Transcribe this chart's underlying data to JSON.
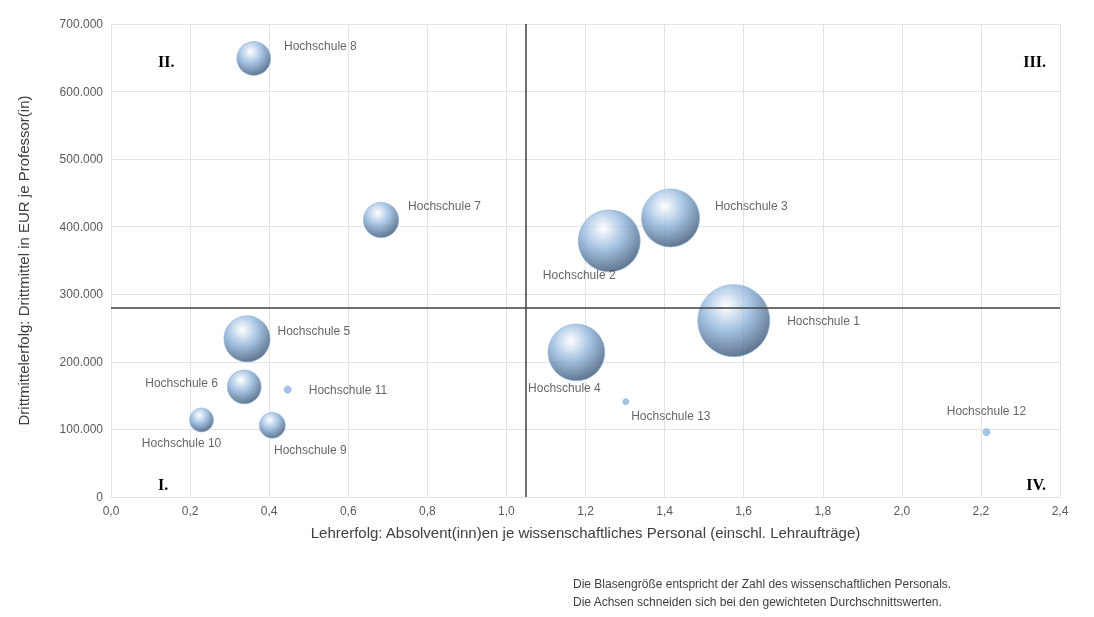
{
  "chart_data": {
    "type": "bubble",
    "xlabel": "Lehrerfolg: Absolvent(inn)en je wissenschaftliches Personal (einschl. Lehraufträge)",
    "ylabel": "Drittmittelerfolg: Drittmittel in EUR je Professor(in)",
    "xlim": [
      0,
      2.4
    ],
    "xticks": [
      {
        "value": 0,
        "label": "0,0"
      },
      {
        "value": 0.2,
        "label": "0,2"
      },
      {
        "value": 0.4,
        "label": "0,4"
      },
      {
        "value": 0.6,
        "label": "0,6"
      },
      {
        "value": 0.8,
        "label": "0,8"
      },
      {
        "value": 1,
        "label": "1,0"
      },
      {
        "value": 1.2,
        "label": "1,2"
      },
      {
        "value": 1.4,
        "label": "1,4"
      },
      {
        "value": 1.6,
        "label": "1,6"
      },
      {
        "value": 1.8,
        "label": "1,8"
      },
      {
        "value": 2,
        "label": "2,0"
      },
      {
        "value": 2.2,
        "label": "2,2"
      },
      {
        "value": 2.4,
        "label": "2,4"
      }
    ],
    "ylim": [
      0,
      700000
    ],
    "yticks": [
      0,
      {
        "value": 100000,
        "label": "100.000"
      },
      {
        "value": 200000,
        "label": "200.000"
      },
      {
        "value": 300000,
        "label": "300.000"
      },
      {
        "value": 400000,
        "label": "400.000"
      },
      {
        "value": 500000,
        "label": "500.000"
      },
      {
        "value": 600000,
        "label": "600.000"
      },
      {
        "value": 700000,
        "label": "700.000"
      }
    ],
    "grid": true,
    "legend": false,
    "marker": "circle",
    "series": [
      {
        "name": "Hochschule 1",
        "color": "#8fb4dc",
        "x": [
          1.575
        ],
        "values": [
          261000
        ],
        "sizes": [
          1
        ]
      },
      {
        "name": "Hochschule 2",
        "color": "#8fb4dc",
        "x": [
          1.26
        ],
        "values": [
          379000
        ],
        "sizes": [
          0.74
        ]
      },
      {
        "name": "Hochschule 3",
        "color": "#8fb4dc",
        "x": [
          1.415
        ],
        "values": [
          413000
        ],
        "sizes": [
          0.65
        ]
      },
      {
        "name": "Hochschule 4",
        "color": "#8fb4dc",
        "x": [
          1.177
        ],
        "values": [
          214000
        ],
        "sizes": [
          0.62
        ]
      },
      {
        "name": "Hochschule 5",
        "color": "#8fb4dc",
        "x": [
          0.344
        ],
        "values": [
          234000
        ],
        "sizes": [
          0.41
        ]
      },
      {
        "name": "Hochschule 6",
        "color": "#8fb4dc",
        "x": [
          0.337
        ],
        "values": [
          163000
        ],
        "sizes": [
          0.22
        ]
      },
      {
        "name": "Hochschule 7",
        "color": "#8fb4dc",
        "x": [
          0.683
        ],
        "values": [
          410000
        ],
        "sizes": [
          0.24
        ]
      },
      {
        "name": "Hochschule 8",
        "color": "#8fb4dc",
        "x": [
          0.361
        ],
        "values": [
          649000
        ],
        "sizes": [
          0.22
        ]
      },
      {
        "name": "Hochschule 9",
        "color": "#8fb4dc",
        "x": [
          0.408
        ],
        "values": [
          106000
        ],
        "sizes": [
          0.13
        ]
      },
      {
        "name": "Hochschule 10",
        "color": "#8fb4dc",
        "x": [
          0.229
        ],
        "values": [
          114000
        ],
        "sizes": [
          0.11
        ]
      },
      {
        "name": "Hochschule 11",
        "color": "#8fb4dc",
        "x": [
          0.447
        ],
        "values": [
          159000
        ],
        "sizes": [
          0.01
        ]
      },
      {
        "name": "Hochschule 12",
        "color": "#8fb4dc",
        "x": [
          2.214
        ],
        "values": [
          96000
        ],
        "sizes": [
          0.01
        ]
      },
      {
        "name": "Hochschule 13",
        "color": "#8fb4dc",
        "x": [
          1.302
        ],
        "values": [
          141000
        ],
        "sizes": [
          0.007
        ]
      }
    ],
    "ref_lines": [
      {
        "axis": "x",
        "value": 1.05,
        "color": "#404040"
      },
      {
        "axis": "y",
        "value": 280000,
        "color": "#404040"
      }
    ],
    "annotations": [
      "I.",
      "II.",
      "III.",
      "IV.",
      "Die Blasengröße entspricht der Zahl des wissenschaftlichen Personals.",
      "Die Achsen schneiden sich bei den gewichteten Durchschnittswerten."
    ]
  }
}
